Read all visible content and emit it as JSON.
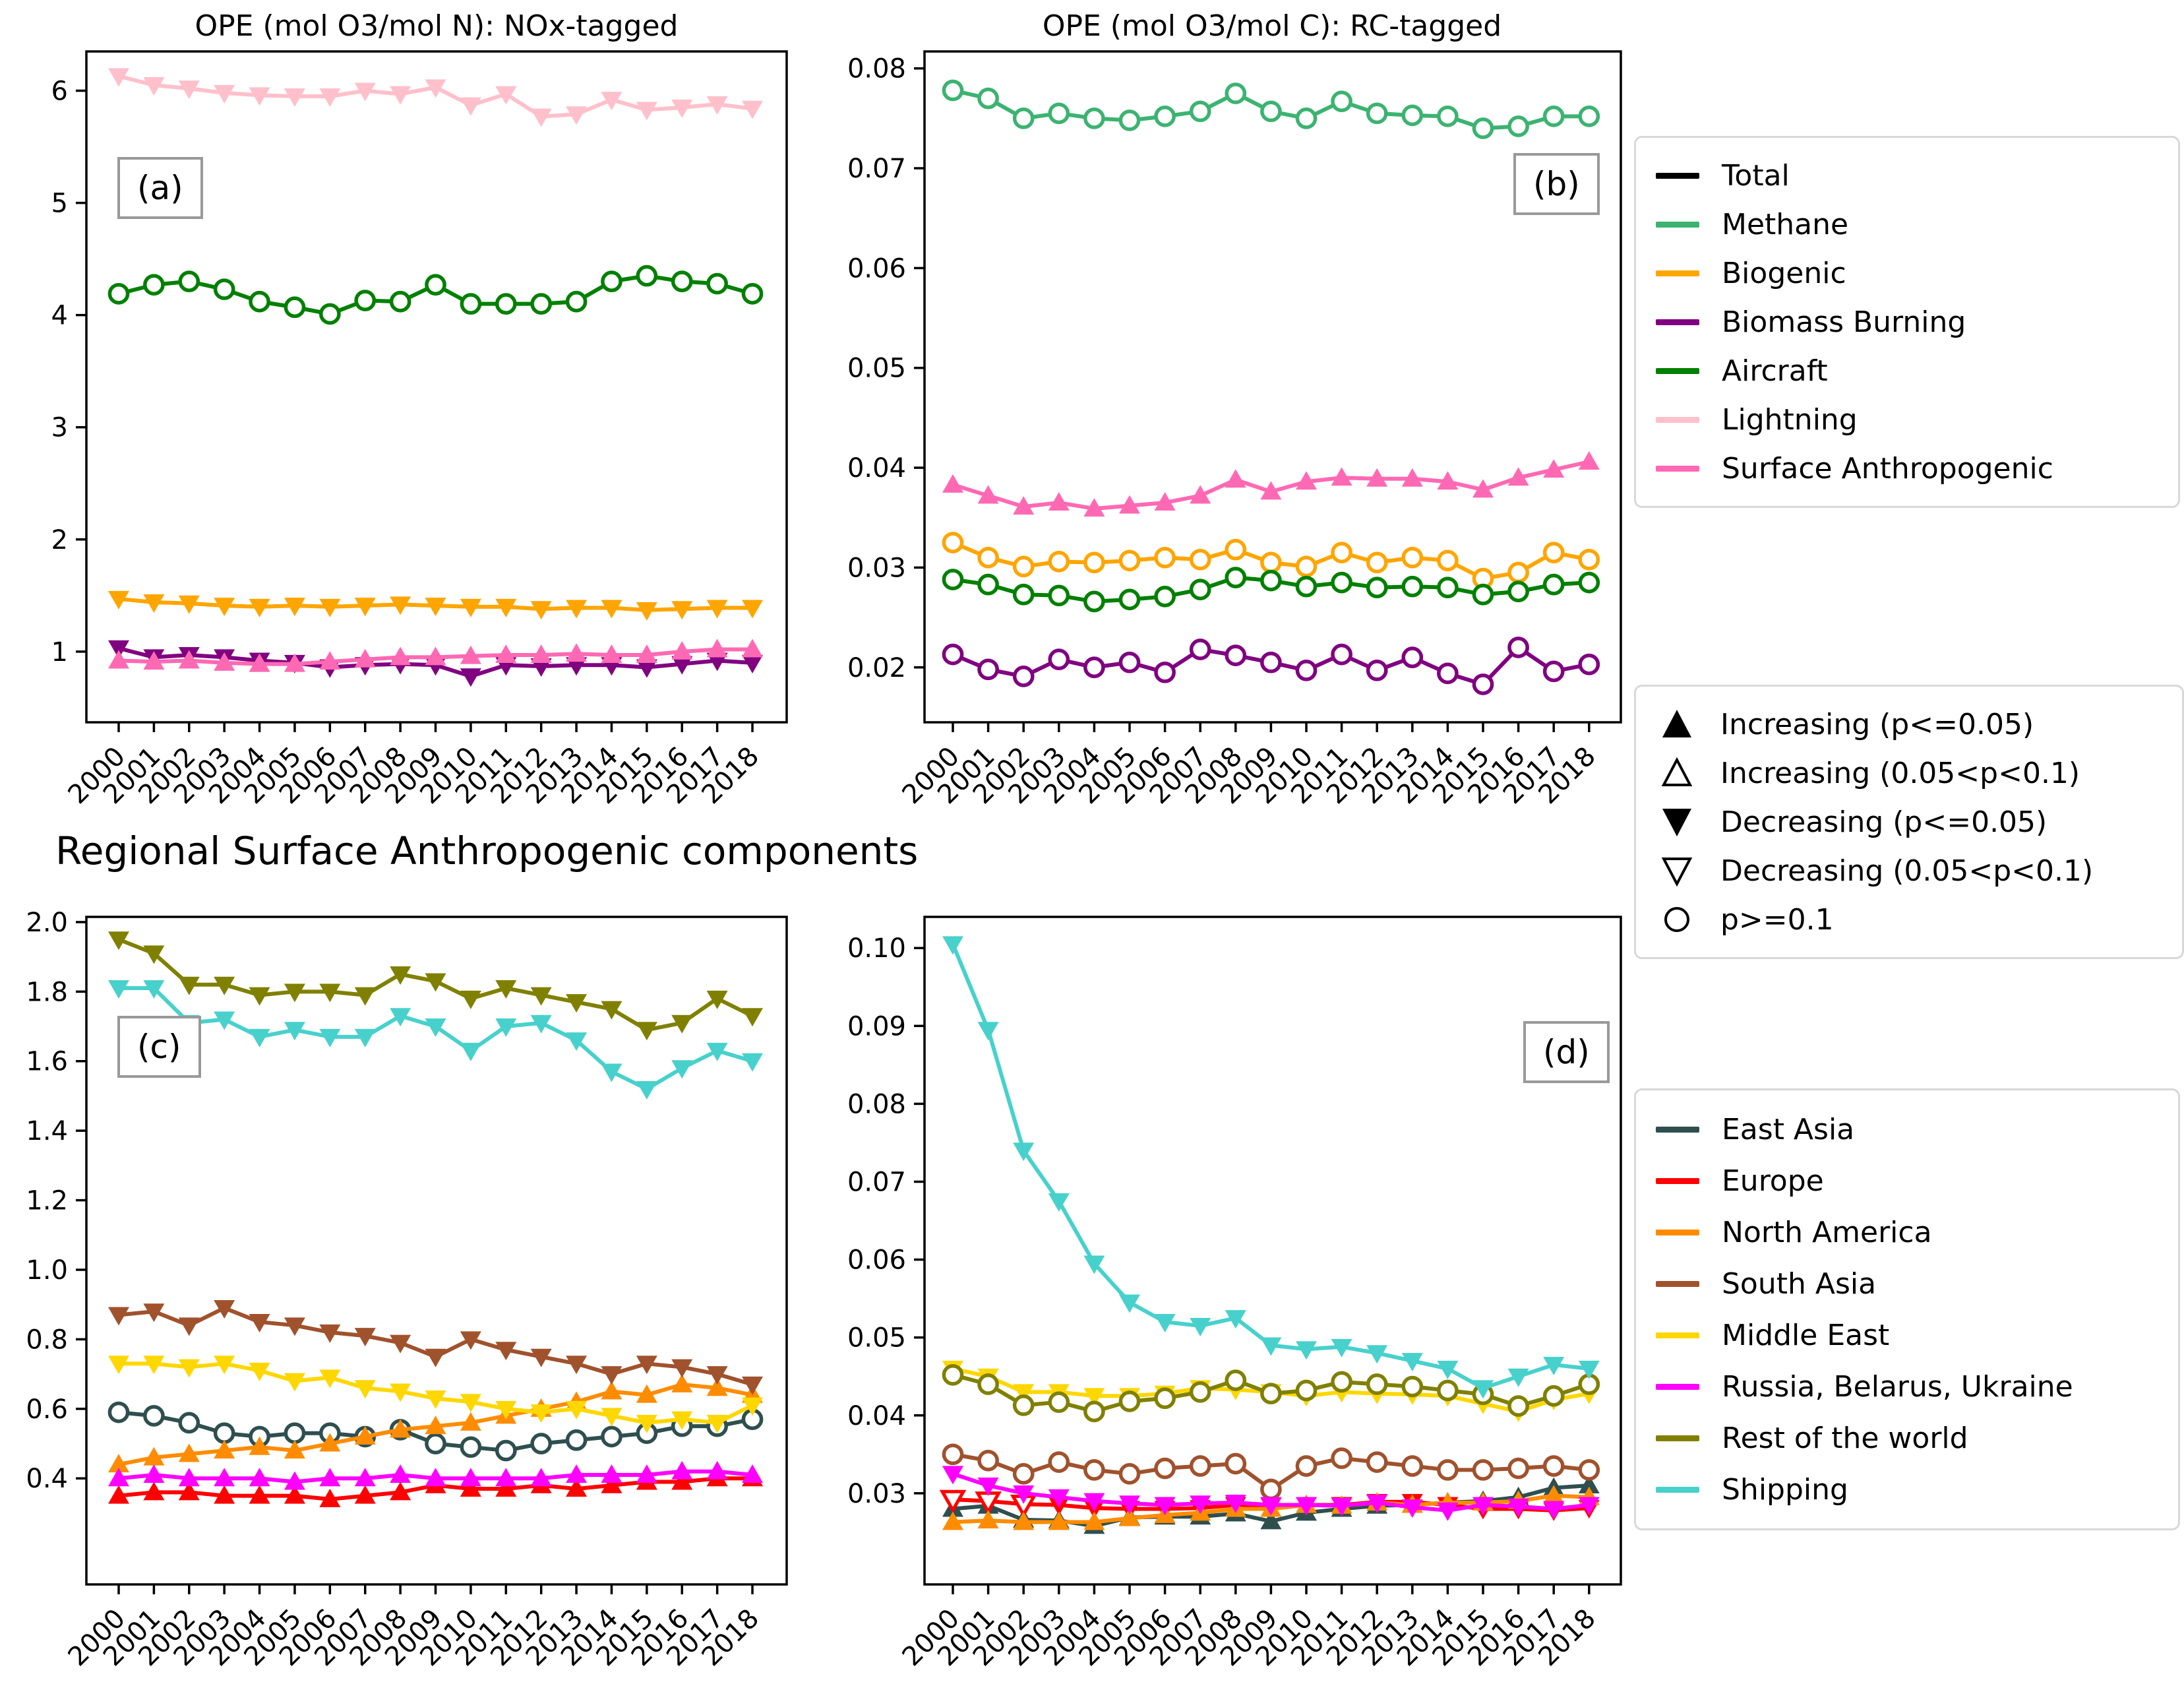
{
  "figure": {
    "suptitle": "Regional Surface Anthropogenic components",
    "panel_titles": {
      "a": "OPE (mol O3/mol N): NOx-tagged",
      "b": "OPE (mol O3/mol C): RC-tagged"
    },
    "panel_labels": {
      "a": "(a)",
      "b": "(b)",
      "c": "(c)",
      "d": "(d)"
    }
  },
  "legends": {
    "sources": {
      "items": [
        {
          "label": "Total",
          "color": "#000000"
        },
        {
          "label": "Methane",
          "color": "#3CB371"
        },
        {
          "label": "Biogenic",
          "color": "#FFA500"
        },
        {
          "label": "Biomass Burning",
          "color": "#800080"
        },
        {
          "label": "Aircraft",
          "color": "#008000"
        },
        {
          "label": "Lightning",
          "color": "#FFC0CB"
        },
        {
          "label": "Surface Anthropogenic",
          "color": "#FF69B4"
        }
      ]
    },
    "trend_markers": {
      "items": [
        {
          "label": "Increasing (p<=0.05)",
          "marker": "up"
        },
        {
          "label": "Increasing (0.05<p<0.1)",
          "marker": "up-open"
        },
        {
          "label": "Decreasing (p<=0.05)",
          "marker": "down"
        },
        {
          "label": "Decreasing (0.05<p<0.1)",
          "marker": "down-open"
        },
        {
          "label": "p>=0.1",
          "marker": "circle"
        }
      ]
    },
    "regions": {
      "items": [
        {
          "label": "East Asia",
          "color": "#2F4F4F"
        },
        {
          "label": "Europe",
          "color": "#FF0000"
        },
        {
          "label": "North America",
          "color": "#FF8C00"
        },
        {
          "label": "South Asia",
          "color": "#A0522D"
        },
        {
          "label": "Middle East",
          "color": "#FFD700"
        },
        {
          "label": "Russia, Belarus, Ukraine",
          "color": "#FF00FF"
        },
        {
          "label": "Rest of the world",
          "color": "#808000"
        },
        {
          "label": "Shipping",
          "color": "#48D1CC"
        }
      ]
    }
  },
  "chart_meta": {
    "years": [
      2000,
      2001,
      2002,
      2003,
      2004,
      2005,
      2006,
      2007,
      2008,
      2009,
      2010,
      2011,
      2012,
      2013,
      2014,
      2015,
      2016,
      2017,
      2018
    ],
    "xtick_labels": [
      "2000",
      "2001",
      "2002",
      "2003",
      "2004",
      "2005",
      "2006",
      "2007",
      "2008",
      "2009",
      "2010",
      "2011",
      "2012",
      "2013",
      "2014",
      "2015",
      "2016",
      "2017",
      "2018"
    ],
    "marker_meaning": {
      "up": "Increasing (p<=0.05)",
      "up-open": "Increasing (0.05<p<0.1)",
      "down": "Decreasing (p<=0.05)",
      "down-open": "Decreasing (0.05<p<0.1)",
      "circle": "p>=0.1"
    }
  },
  "chart_data": [
    {
      "id": "a",
      "type": "line",
      "title": "OPE (mol O3/mol N): NOx-tagged",
      "panel_label": "(a)",
      "ylim": [
        0.37,
        6.35
      ],
      "yticks": [
        1,
        2,
        3,
        4,
        5,
        6
      ],
      "ytick_labels": [
        "1",
        "2",
        "3",
        "4",
        "5",
        "6"
      ],
      "series": [
        {
          "name": "Biogenic",
          "color": "#FFA500",
          "marker": "down",
          "values": [
            1.47,
            1.44,
            1.43,
            1.41,
            1.4,
            1.41,
            1.4,
            1.41,
            1.42,
            1.41,
            1.4,
            1.4,
            1.38,
            1.39,
            1.39,
            1.37,
            1.38,
            1.39,
            1.39
          ]
        },
        {
          "name": "Biomass Burning",
          "color": "#800080",
          "marker": "down",
          "values": [
            1.03,
            0.95,
            0.97,
            0.95,
            0.92,
            0.9,
            0.86,
            0.88,
            0.89,
            0.88,
            0.78,
            0.88,
            0.87,
            0.88,
            0.88,
            0.86,
            0.89,
            0.92,
            0.9
          ]
        },
        {
          "name": "Aircraft",
          "color": "#008000",
          "marker": "circle",
          "values": [
            4.19,
            4.27,
            4.3,
            4.23,
            4.12,
            4.07,
            4.01,
            4.13,
            4.12,
            4.27,
            4.1,
            4.1,
            4.1,
            4.12,
            4.3,
            4.35,
            4.3,
            4.28,
            4.19
          ]
        },
        {
          "name": "Lightning",
          "color": "#FFC0CB",
          "marker": "down",
          "values": [
            6.13,
            6.05,
            6.02,
            5.98,
            5.96,
            5.95,
            5.95,
            6.0,
            5.97,
            6.03,
            5.87,
            5.97,
            5.77,
            5.79,
            5.92,
            5.83,
            5.85,
            5.88,
            5.84
          ]
        },
        {
          "name": "Surface Anthropogenic",
          "color": "#FF69B4",
          "marker": "up",
          "values": [
            0.92,
            0.91,
            0.92,
            0.9,
            0.89,
            0.89,
            0.91,
            0.93,
            0.95,
            0.95,
            0.96,
            0.97,
            0.97,
            0.98,
            0.97,
            0.97,
            1.0,
            1.02,
            1.02
          ]
        }
      ]
    },
    {
      "id": "b",
      "type": "line",
      "title": "OPE (mol O3/mol C): RC-tagged",
      "panel_label": "(b)",
      "ylim": [
        0.0145,
        0.0817
      ],
      "yticks": [
        0.02,
        0.03,
        0.04,
        0.05,
        0.06,
        0.07,
        0.08
      ],
      "ytick_labels": [
        "0.02",
        "0.03",
        "0.04",
        "0.05",
        "0.06",
        "0.07",
        "0.08"
      ],
      "series": [
        {
          "name": "Methane",
          "color": "#3CB371",
          "marker": "circle",
          "values": [
            0.0778,
            0.077,
            0.075,
            0.0755,
            0.075,
            0.0748,
            0.0752,
            0.0757,
            0.0775,
            0.0757,
            0.075,
            0.0767,
            0.0755,
            0.0753,
            0.0752,
            0.074,
            0.0742,
            0.0752,
            0.0752
          ]
        },
        {
          "name": "Biogenic",
          "color": "#FFA500",
          "marker": "circle",
          "values": [
            0.0325,
            0.031,
            0.0301,
            0.0306,
            0.0305,
            0.0307,
            0.031,
            0.0308,
            0.0318,
            0.0305,
            0.0301,
            0.0315,
            0.0305,
            0.031,
            0.0307,
            0.0289,
            0.0295,
            0.0315,
            0.0308
          ]
        },
        {
          "name": "Biomass Burning",
          "color": "#800080",
          "marker": "circle",
          "values": [
            0.0213,
            0.0198,
            0.0191,
            0.0208,
            0.02,
            0.0205,
            0.0195,
            0.0218,
            0.0212,
            0.0205,
            0.0197,
            0.0213,
            0.0197,
            0.021,
            0.0194,
            0.0183,
            0.022,
            0.0196,
            0.0203
          ]
        },
        {
          "name": "Aircraft",
          "color": "#008000",
          "marker": "circle",
          "values": [
            0.0288,
            0.0283,
            0.0273,
            0.0272,
            0.0266,
            0.0268,
            0.0271,
            0.0278,
            0.029,
            0.0287,
            0.0281,
            0.0285,
            0.028,
            0.0281,
            0.028,
            0.0273,
            0.0276,
            0.0283,
            0.0285
          ]
        },
        {
          "name": "Surface Anthropogenic",
          "color": "#FF69B4",
          "marker": "up",
          "values": [
            0.0383,
            0.0372,
            0.0361,
            0.0365,
            0.0359,
            0.0362,
            0.0365,
            0.0372,
            0.0388,
            0.0376,
            0.0386,
            0.039,
            0.0389,
            0.0389,
            0.0386,
            0.0378,
            0.039,
            0.0398,
            0.0406
          ]
        }
      ]
    },
    {
      "id": "c",
      "type": "line",
      "title": "",
      "panel_label": "(c)",
      "ylim": [
        0.095,
        2.015
      ],
      "yticks": [
        0.4,
        0.6,
        0.8,
        1.0,
        1.2,
        1.4,
        1.6,
        1.8,
        2.0
      ],
      "ytick_labels": [
        "0.4",
        "0.6",
        "0.8",
        "1.0",
        "1.2",
        "1.4",
        "1.6",
        "1.8",
        "2.0"
      ],
      "series": [
        {
          "name": "East Asia",
          "color": "#2F4F4F",
          "marker": "circle",
          "values": [
            0.59,
            0.58,
            0.56,
            0.53,
            0.52,
            0.53,
            0.53,
            0.52,
            0.54,
            0.5,
            0.49,
            0.48,
            0.5,
            0.51,
            0.52,
            0.53,
            0.55,
            0.55,
            0.57
          ]
        },
        {
          "name": "Europe",
          "color": "#FF0000",
          "marker": "up",
          "values": [
            0.35,
            0.36,
            0.36,
            0.35,
            0.35,
            0.35,
            0.34,
            0.35,
            0.36,
            0.38,
            0.37,
            0.37,
            0.38,
            0.37,
            0.38,
            0.39,
            0.39,
            0.4,
            0.4
          ]
        },
        {
          "name": "North America",
          "color": "#FF8C00",
          "marker": "up",
          "values": [
            0.44,
            0.46,
            0.47,
            0.48,
            0.49,
            0.48,
            0.5,
            0.52,
            0.54,
            0.55,
            0.56,
            0.58,
            0.6,
            0.62,
            0.65,
            0.64,
            0.67,
            0.66,
            0.64
          ]
        },
        {
          "name": "South Asia",
          "color": "#A0522D",
          "marker": "down",
          "values": [
            0.87,
            0.88,
            0.84,
            0.89,
            0.85,
            0.84,
            0.82,
            0.81,
            0.79,
            0.75,
            0.8,
            0.77,
            0.75,
            0.73,
            0.7,
            0.73,
            0.72,
            0.7,
            0.67
          ]
        },
        {
          "name": "Middle East",
          "color": "#FFD700",
          "marker": "down",
          "values": [
            0.73,
            0.73,
            0.72,
            0.73,
            0.71,
            0.68,
            0.69,
            0.66,
            0.65,
            0.63,
            0.62,
            0.6,
            0.59,
            0.6,
            0.58,
            0.56,
            0.57,
            0.56,
            0.61
          ]
        },
        {
          "name": "Russia, Belarus, Ukraine",
          "color": "#FF00FF",
          "marker": "up",
          "values": [
            0.4,
            0.41,
            0.4,
            0.4,
            0.4,
            0.39,
            0.4,
            0.4,
            0.41,
            0.4,
            0.4,
            0.4,
            0.4,
            0.41,
            0.41,
            0.41,
            0.42,
            0.42,
            0.41
          ]
        },
        {
          "name": "Rest of the world",
          "color": "#808000",
          "marker": "down",
          "values": [
            1.95,
            1.91,
            1.82,
            1.82,
            1.79,
            1.8,
            1.8,
            1.79,
            1.85,
            1.83,
            1.78,
            1.81,
            1.79,
            1.77,
            1.75,
            1.69,
            1.71,
            1.78,
            1.73
          ]
        },
        {
          "name": "Shipping",
          "color": "#48D1CC",
          "marker": "down",
          "values": [
            1.81,
            1.81,
            1.71,
            1.72,
            1.67,
            1.69,
            1.67,
            1.67,
            1.73,
            1.7,
            1.63,
            1.7,
            1.71,
            1.66,
            1.57,
            1.52,
            1.58,
            1.63,
            1.6
          ]
        }
      ]
    },
    {
      "id": "d",
      "type": "line",
      "title": "",
      "panel_label": "(d)",
      "ylim": [
        0.0183,
        0.104
      ],
      "yticks": [
        0.03,
        0.04,
        0.05,
        0.06,
        0.07,
        0.08,
        0.09,
        0.1
      ],
      "ytick_labels": [
        "0.03",
        "0.04",
        "0.05",
        "0.06",
        "0.07",
        "0.08",
        "0.09",
        "0.10"
      ],
      "series": [
        {
          "name": "East Asia",
          "color": "#2F4F4F",
          "marker": "up",
          "values": [
            0.028,
            0.0284,
            0.0266,
            0.0265,
            0.0258,
            0.0269,
            0.027,
            0.027,
            0.0274,
            0.0264,
            0.0275,
            0.028,
            0.0284,
            0.0285,
            0.0288,
            0.029,
            0.0295,
            0.0307,
            0.031
          ]
        },
        {
          "name": "Europe",
          "color": "#FF0000",
          "marker": "down",
          "markers": [
            "down-open",
            "down-open",
            "down-open",
            "down",
            "down",
            "down",
            "down",
            "down",
            "down",
            "down",
            "down",
            "down",
            "down",
            "down",
            "down",
            "down",
            "down",
            "down",
            "down"
          ],
          "values": [
            0.0292,
            0.029,
            0.0286,
            0.0285,
            0.0281,
            0.028,
            0.028,
            0.0281,
            0.0285,
            0.0284,
            0.0285,
            0.0285,
            0.0289,
            0.0289,
            0.0285,
            0.028,
            0.028,
            0.0278,
            0.0281
          ]
        },
        {
          "name": "North America",
          "color": "#FF8C00",
          "marker": "up",
          "values": [
            0.0263,
            0.0265,
            0.0263,
            0.0263,
            0.0263,
            0.0268,
            0.0272,
            0.0275,
            0.028,
            0.028,
            0.0285,
            0.0284,
            0.0288,
            0.0285,
            0.0288,
            0.0288,
            0.029,
            0.0297,
            0.0295
          ]
        },
        {
          "name": "South Asia",
          "color": "#A0522D",
          "marker": "circle",
          "values": [
            0.035,
            0.0342,
            0.0325,
            0.034,
            0.033,
            0.0325,
            0.0332,
            0.0335,
            0.0338,
            0.0305,
            0.0335,
            0.0345,
            0.034,
            0.0335,
            0.033,
            0.033,
            0.0332,
            0.0335,
            0.033
          ]
        },
        {
          "name": "Middle East",
          "color": "#FFD700",
          "marker": "down",
          "values": [
            0.046,
            0.045,
            0.043,
            0.043,
            0.0425,
            0.0425,
            0.0428,
            0.0435,
            0.0433,
            0.043,
            0.0425,
            0.043,
            0.0428,
            0.0427,
            0.0425,
            0.0415,
            0.0405,
            0.042,
            0.0428
          ]
        },
        {
          "name": "Russia, Belarus, Ukraine",
          "color": "#FF00FF",
          "marker": "down",
          "values": [
            0.0325,
            0.031,
            0.03,
            0.0295,
            0.029,
            0.0287,
            0.0285,
            0.0287,
            0.0288,
            0.0285,
            0.0285,
            0.0284,
            0.0288,
            0.0282,
            0.0278,
            0.0285,
            0.0283,
            0.028,
            0.0285
          ]
        },
        {
          "name": "Rest of the world",
          "color": "#808000",
          "marker": "circle",
          "values": [
            0.0452,
            0.044,
            0.0413,
            0.0417,
            0.0405,
            0.0418,
            0.0422,
            0.043,
            0.0445,
            0.0428,
            0.0432,
            0.0443,
            0.044,
            0.0437,
            0.0432,
            0.0427,
            0.0412,
            0.0425,
            0.044
          ]
        },
        {
          "name": "Shipping",
          "color": "#48D1CC",
          "marker": "down",
          "values": [
            0.1005,
            0.0895,
            0.074,
            0.0675,
            0.0595,
            0.0545,
            0.052,
            0.0515,
            0.0525,
            0.049,
            0.0485,
            0.0488,
            0.048,
            0.047,
            0.046,
            0.0435,
            0.045,
            0.0465,
            0.046
          ]
        }
      ]
    }
  ]
}
